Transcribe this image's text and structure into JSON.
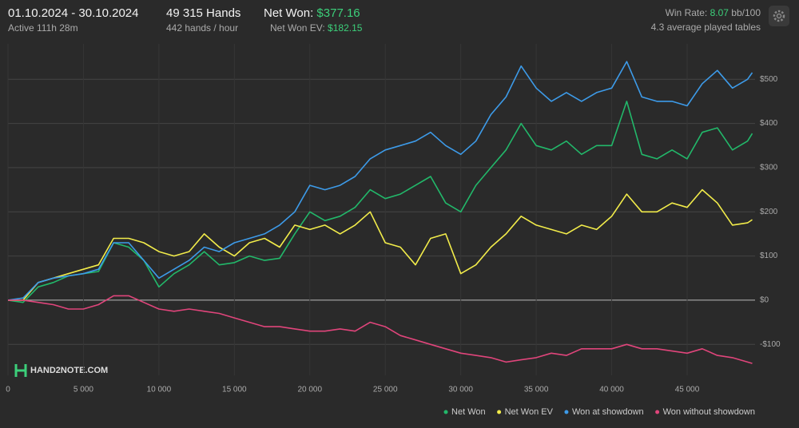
{
  "header": {
    "date_range": "01.10.2024 - 30.10.2024",
    "active": "Active 111h 28m",
    "hands": "49 315 Hands",
    "hands_per_hour": "442 hands / hour",
    "net_won_label": "Net Won:",
    "net_won_value": "$377.16",
    "net_won_ev_label": "Net Won  EV:",
    "net_won_ev_value": "$182.15",
    "win_rate_label": "Win Rate:",
    "win_rate_value": "8.07",
    "win_rate_unit": "bb/100",
    "tables": "4.3 average played tables",
    "logo": "HAND2NOTE.COM"
  },
  "chart_data": {
    "type": "line",
    "x": [
      0,
      1000,
      2000,
      3000,
      4000,
      5000,
      6000,
      7000,
      8000,
      9000,
      10000,
      11000,
      12000,
      13000,
      14000,
      15000,
      16000,
      17000,
      18000,
      19000,
      20000,
      21000,
      22000,
      23000,
      24000,
      25000,
      26000,
      27000,
      28000,
      29000,
      30000,
      31000,
      32000,
      33000,
      34000,
      35000,
      36000,
      37000,
      38000,
      39000,
      40000,
      41000,
      42000,
      43000,
      44000,
      45000,
      46000,
      47000,
      48000,
      49000,
      49315
    ],
    "series": [
      {
        "name": "Net Won",
        "color": "#22b86a",
        "values": [
          0,
          -5,
          30,
          40,
          55,
          60,
          65,
          130,
          120,
          90,
          30,
          60,
          80,
          110,
          80,
          85,
          100,
          90,
          95,
          150,
          200,
          180,
          190,
          210,
          250,
          230,
          240,
          260,
          280,
          220,
          200,
          260,
          300,
          340,
          400,
          350,
          340,
          360,
          330,
          350,
          350,
          450,
          330,
          320,
          340,
          320,
          380,
          390,
          340,
          360,
          377.16
        ]
      },
      {
        "name": "Net Won  EV",
        "color": "#f2ec4a",
        "values": [
          0,
          0,
          40,
          50,
          60,
          70,
          80,
          140,
          140,
          130,
          110,
          100,
          110,
          150,
          120,
          100,
          130,
          140,
          120,
          170,
          160,
          170,
          150,
          170,
          200,
          130,
          120,
          80,
          140,
          150,
          60,
          80,
          120,
          150,
          190,
          170,
          160,
          150,
          170,
          160,
          190,
          240,
          200,
          200,
          220,
          210,
          250,
          220,
          170,
          175,
          182.15
        ]
      },
      {
        "name": "Won at showdown",
        "color": "#3d9be9",
        "values": [
          0,
          5,
          40,
          50,
          55,
          60,
          70,
          130,
          130,
          90,
          50,
          70,
          90,
          120,
          110,
          130,
          140,
          150,
          170,
          200,
          260,
          250,
          260,
          280,
          320,
          340,
          350,
          360,
          380,
          350,
          330,
          360,
          420,
          460,
          530,
          480,
          450,
          470,
          450,
          470,
          480,
          540,
          460,
          450,
          450,
          440,
          490,
          520,
          480,
          500,
          515
        ]
      },
      {
        "name": "Won without showdown",
        "color": "#e0457b",
        "values": [
          0,
          0,
          -5,
          -10,
          -20,
          -20,
          -10,
          10,
          10,
          -5,
          -20,
          -25,
          -20,
          -25,
          -30,
          -40,
          -50,
          -60,
          -60,
          -65,
          -70,
          -70,
          -65,
          -70,
          -50,
          -60,
          -80,
          -90,
          -100,
          -110,
          -120,
          -125,
          -130,
          -140,
          -135,
          -130,
          -120,
          -125,
          -110,
          -110,
          -110,
          -100,
          -110,
          -110,
          -115,
          -120,
          -110,
          -125,
          -130,
          -140,
          -143
        ]
      }
    ],
    "xlim": [
      0,
      49500
    ],
    "xticks": [
      0,
      {
        "value": 5000,
        "label": "5 000"
      },
      {
        "value": 10000,
        "label": "10 000"
      },
      {
        "value": 15000,
        "label": "15 000"
      },
      {
        "value": 20000,
        "label": "20 000"
      },
      {
        "value": 25000,
        "label": "25 000"
      },
      {
        "value": 30000,
        "label": "30 000"
      },
      {
        "value": 35000,
        "label": "35 000"
      },
      {
        "value": 40000,
        "label": "40 000"
      },
      {
        "value": 45000,
        "label": "45 000"
      }
    ],
    "ylim": [
      -170,
      580
    ],
    "yticks": [
      {
        "value": -100,
        "label": "-$100"
      },
      {
        "value": 0,
        "label": "$0"
      },
      {
        "value": 100,
        "label": "$100"
      },
      {
        "value": 200,
        "label": "$200"
      },
      {
        "value": 300,
        "label": "$300"
      },
      {
        "value": 400,
        "label": "$400"
      },
      {
        "value": 500,
        "label": "$500"
      }
    ],
    "grid": true,
    "legend": "bottom-right"
  }
}
